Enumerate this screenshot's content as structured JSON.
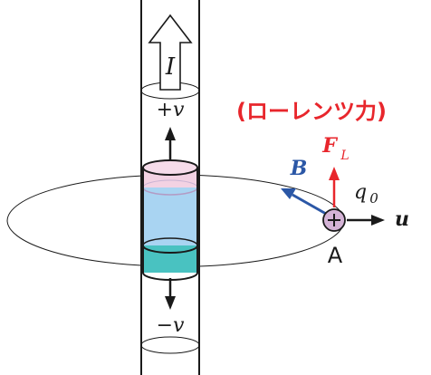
{
  "labels": {
    "current": "I",
    "velocity_up": "+v",
    "velocity_down": "−v",
    "force_caption": "(ローレンツ力)",
    "force_symbol": "F",
    "force_subscript": "L",
    "magnetic_field": "B",
    "charge_symbol": "q",
    "charge_subscript": "0",
    "charge_sign": "+",
    "charge_velocity": "u",
    "point_label": "A"
  },
  "colors": {
    "line": "#1a1a1a",
    "force": "#e8262c",
    "field": "#2b57a6",
    "pink_band": "#f3d2e3",
    "blue_band": "#a9d4f2",
    "cyan_band": "#49c2c1",
    "charge_fill": "#d4b3d6"
  }
}
